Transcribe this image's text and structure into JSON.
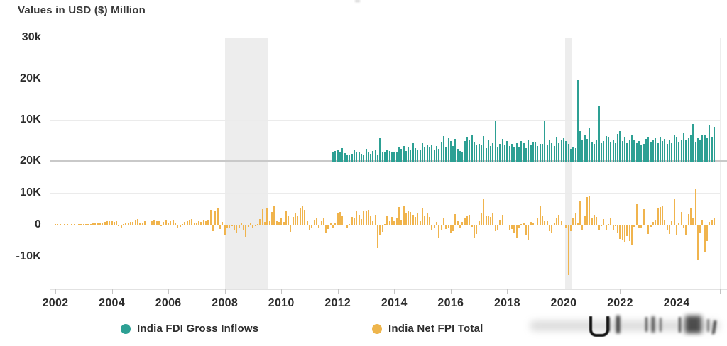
{
  "title": "Values in USD ($) Million",
  "legend": {
    "items": [
      {
        "label": "India FDI Gross Inflows",
        "color": "#2da094"
      },
      {
        "label": "India Net FPI Total",
        "color": "#f0b44d"
      }
    ]
  },
  "colors": {
    "fdi_bar": "#2da094",
    "fpi_bar": "#f0b44d",
    "zero_line": "#c9c9c9",
    "gridline": "#ebebeb",
    "recession_band": "#ededed",
    "text": "#2b2b2b",
    "background": "#ffffff"
  },
  "chart_data": {
    "type": "bar",
    "title": "Values in USD ($) Million",
    "x_unit": "month",
    "x_range_years": [
      2002.0,
      2025.5
    ],
    "x_tick_years": [
      "2002",
      "2004",
      "2006",
      "2008",
      "2010",
      "2012",
      "2014",
      "2016",
      "2018",
      "2020",
      "2022",
      "2024"
    ],
    "grid": true,
    "legend_position": "bottom",
    "shaded_bands": [
      {
        "from_year": 2008.0,
        "to_year": 2009.55
      },
      {
        "from_year": 2020.04,
        "to_year": 2020.3
      }
    ],
    "panels": [
      {
        "id": "fdi",
        "ylim": [
          0,
          30200
        ],
        "ticks": [
          {
            "label": "30k",
            "value": 30000,
            "gridline": true
          },
          {
            "label": "20K",
            "value": 20000,
            "gridline": true
          },
          {
            "label": "10K",
            "value": 10000,
            "gridline": true
          }
        ],
        "zero_line_thick": true,
        "series": {
          "name": "India FDI Gross Inflows",
          "color": "#2da094",
          "start": "2011-11",
          "values": [
            2100,
            2400,
            2800,
            2200,
            3100,
            1900,
            1600,
            1400,
            1800,
            2600,
            2300,
            2100,
            1700,
            1500,
            2900,
            2100,
            1800,
            2400,
            2700,
            1600,
            5600,
            2200,
            2000,
            2800,
            2400,
            2100,
            2300,
            2100,
            3200,
            2900,
            3600,
            2500,
            3400,
            2700,
            4400,
            3100,
            2800,
            2600,
            4500,
            3300,
            3900,
            3200,
            3800,
            2700,
            3600,
            2900,
            4700,
            6100,
            3400,
            5500,
            4900,
            3600,
            5400,
            2900,
            2400,
            2100,
            4800,
            5900,
            5200,
            6400,
            4600,
            3800,
            4200,
            3900,
            6100,
            3100,
            5100,
            3600,
            4500,
            9700,
            3500,
            4100,
            5300,
            4000,
            4800,
            3700,
            4100,
            3400,
            4300,
            3200,
            4900,
            4400,
            3100,
            5200,
            4000,
            4600,
            4700,
            3600,
            4200,
            4100,
            9600,
            3800,
            5200,
            4300,
            3700,
            5900,
            4500,
            5100,
            5600,
            4900,
            4200,
            2900,
            3400,
            3100,
            19600,
            7200,
            5100,
            6300,
            5400,
            7900,
            4600,
            4100,
            5200,
            13300,
            4400,
            4900,
            6100,
            5800,
            4700,
            5200,
            4300,
            6600,
            7200,
            4800,
            5900,
            4500,
            5200,
            6400,
            5100,
            4400,
            4900,
            3800,
            4200,
            5300,
            5800,
            4600,
            5100,
            5500,
            4300,
            5900,
            4800,
            5400,
            4100,
            5000,
            4500,
            6200,
            5900,
            4700,
            5200,
            6800,
            5100,
            5600,
            6400,
            8900,
            4600,
            5700,
            5100,
            6200,
            6300,
            5500,
            8800,
            5900,
            8300
          ]
        }
      },
      {
        "id": "fpi",
        "ylim": [
          -20000,
          20000
        ],
        "ticks": [
          {
            "label": "20K",
            "value": 20000,
            "gridline": false
          },
          {
            "label": "10K",
            "value": 10000,
            "gridline": true
          },
          {
            "label": "0",
            "value": 0,
            "gridline": "faint"
          },
          {
            "label": "-10K",
            "value": -10000,
            "gridline": true
          }
        ],
        "zero_line_thick": false,
        "series": {
          "name": "India Net FPI Total",
          "color": "#f0b44d",
          "start": "2002-01",
          "values": [
            120,
            80,
            150,
            -60,
            90,
            40,
            -80,
            110,
            60,
            -40,
            130,
            180,
            150,
            220,
            180,
            300,
            450,
            380,
            520,
            640,
            580,
            900,
            1100,
            1400,
            1250,
            980,
            1100,
            -400,
            -800,
            300,
            550,
            700,
            850,
            950,
            1500,
            1800,
            450,
            700,
            1200,
            -300,
            -150,
            1100,
            1500,
            1050,
            1400,
            -500,
            900,
            1600,
            700,
            1300,
            1500,
            500,
            -1200,
            -600,
            300,
            900,
            1100,
            1500,
            1800,
            400,
            500,
            1200,
            900,
            1500,
            1100,
            1600,
            4700,
            -1900,
            4200,
            5100,
            -1400,
            800,
            -3200,
            -800,
            -1200,
            -400,
            -1500,
            -2400,
            -1100,
            600,
            -1800,
            -3800,
            -600,
            400,
            -900,
            -500,
            300,
            1800,
            4800,
            800,
            5200,
            1200,
            4100,
            5900,
            1400,
            800,
            2100,
            900,
            4200,
            2600,
            -2200,
            2400,
            3700,
            2800,
            5400,
            6100,
            4700,
            1300,
            -1500,
            -800,
            1600,
            1900,
            -1100,
            1200,
            2200,
            -2600,
            -1400,
            400,
            -900,
            500,
            3600,
            4100,
            2700,
            -200,
            -1200,
            100,
            2500,
            2200,
            4200,
            3100,
            1700,
            4500,
            4400,
            4600,
            2900,
            1400,
            3200,
            -7400,
            -3100,
            -2200,
            300,
            2600,
            1300,
            2400,
            1400,
            2100,
            5600,
            1600,
            5900,
            3500,
            4200,
            3900,
            3100,
            2400,
            3800,
            1100,
            5300,
            2900,
            3700,
            2500,
            -1800,
            -1200,
            800,
            -4100,
            -1600,
            1900,
            -1400,
            -800,
            -2400,
            -1900,
            3400,
            1200,
            -900,
            900,
            2100,
            2600,
            3200,
            -700,
            -4300,
            -2900,
            1100,
            3700,
            8200,
            2600,
            2900,
            2400,
            3500,
            -2100,
            -1700,
            1600,
            3100,
            -200,
            -300,
            -1800,
            -1400,
            -2500,
            -3900,
            -1100,
            300,
            500,
            -3100,
            -4700,
            900,
            500,
            -100,
            2300,
            6100,
            2900,
            1400,
            1100,
            -1900,
            -2400,
            700,
            2200,
            3200,
            1300,
            -200,
            -1100,
            -15800,
            -2100,
            1900,
            3500,
            500,
            7400,
            -1500,
            2700,
            8600,
            9200,
            1900,
            3100,
            2400,
            -1500,
            -400,
            1700,
            -1700,
            300,
            1900,
            -1800,
            -500,
            -2600,
            -4400,
            -4900,
            -5500,
            -3500,
            -5100,
            -6300,
            -600,
            6500,
            -1000,
            -1100,
            4900,
            -200,
            -2900,
            -600,
            1000,
            1500,
            5300,
            5600,
            5900,
            1500,
            -1800,
            -2900,
            1100,
            7900,
            -3200,
            500,
            4100,
            -1100,
            -3100,
            3300,
            5400,
            1900,
            11100,
            -11000,
            -2600,
            1600,
            -8400,
            -5200,
            1000,
            1500,
            1900
          ]
        }
      }
    ]
  }
}
